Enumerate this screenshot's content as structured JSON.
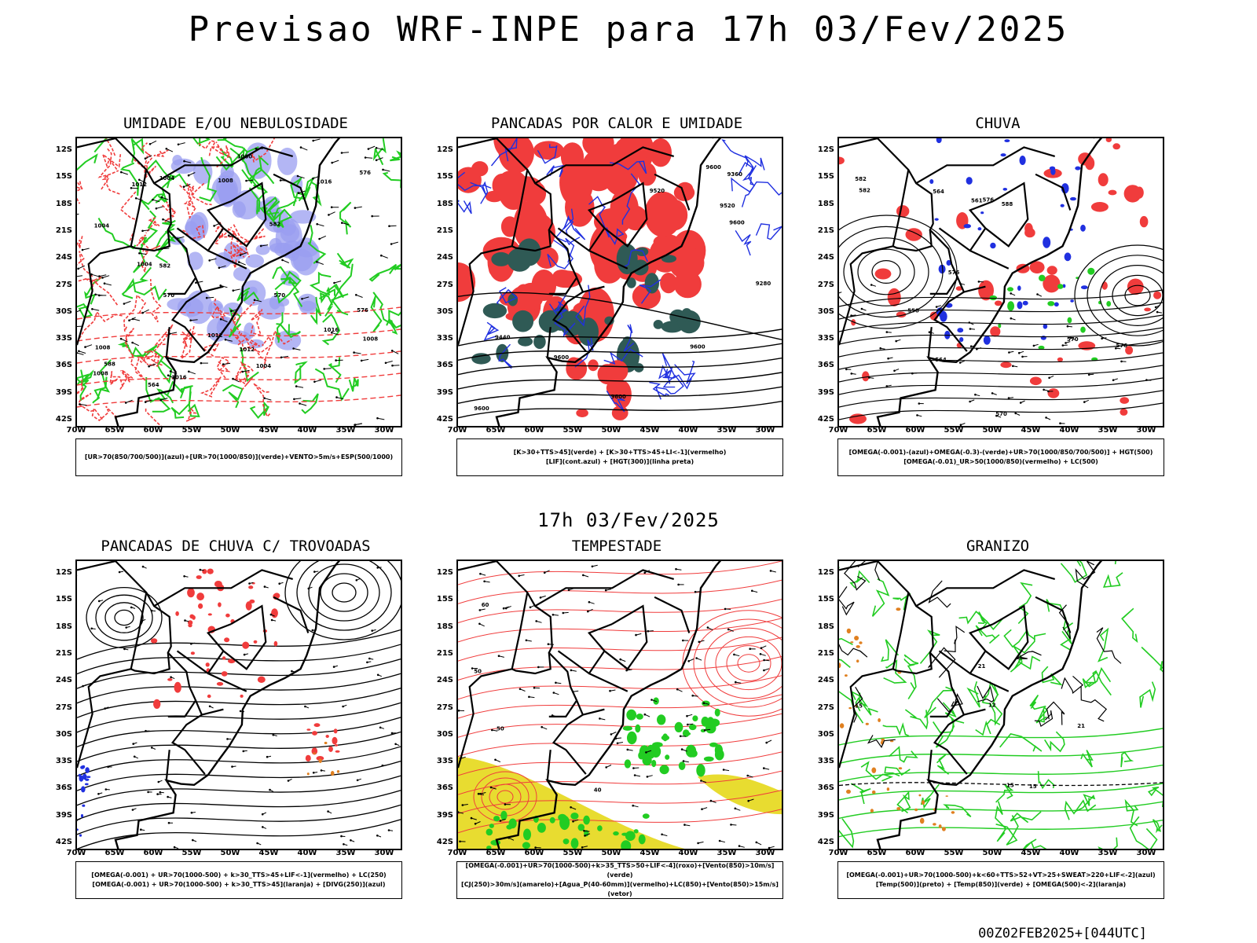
{
  "title": "Previsao WRF-INPE  para 17h 03/Fev/2025",
  "middle_title": "17h 03/Fev/2025",
  "footer": "00Z02FEB2025+[044UTC]",
  "lat_labels": [
    "12S",
    "15S",
    "18S",
    "21S",
    "24S",
    "27S",
    "30S",
    "33S",
    "36S",
    "39S",
    "42S"
  ],
  "lon_labels": [
    "70W",
    "65W",
    "60W",
    "55W",
    "50W",
    "45W",
    "40W",
    "35W",
    "30W"
  ],
  "panels": [
    {
      "title": "UMIDADE E/OU NEBULOSIDADE",
      "legend": [
        "[UR>70(850/700/500)](azul)+[UR>70(1000/850)](verde)+VENTO>5m/s+ESP(500/1000)"
      ],
      "contour_labels": [
        "1008",
        "1004",
        "1008",
        "1004",
        "1012",
        "1012",
        "1016",
        "1016",
        "1012",
        "1000",
        "1004",
        "1008",
        "1004",
        "1016",
        "1008",
        "576",
        "582",
        "570",
        "576",
        "564",
        "582",
        "588",
        "570"
      ]
    },
    {
      "title": "PANCADAS POR CALOR E UMIDADE",
      "legend": [
        "[K>30+TTS>45](verde) + [K>30+TTS>45+LI<-1](vermelho)",
        "[LIF](cont.azul) + [HGT(300)](linha preta)"
      ],
      "contour_labels": [
        "9600",
        "9600",
        "9600",
        "9600",
        "9600",
        "9600",
        "9520",
        "9520",
        "9440",
        "9360",
        "9280"
      ]
    },
    {
      "title": "CHUVA",
      "legend": [
        "[OMEGA(-0.001)-(azul)+OMEGA(-0.3)-(verde)+UR>70(1000/850/700/500)] + HGT(500)",
        "[OMEGA(-0.01)_UR>50(1000/850)(vermelho) + LC(500)"
      ],
      "contour_labels": [
        "582",
        "588",
        "582",
        "576",
        "570",
        "564",
        "576",
        "576",
        "570",
        "564",
        "561",
        "558"
      ]
    },
    {
      "title": "PANCADAS DE CHUVA C/ TROVOADAS",
      "legend": [
        "[OMEGA(-0.001) + UR>70(1000-500) + k>30_TTS>45+LIF<-1](vermelho) + LC(250)",
        "[OMEGA(-0.001) + UR>70(1000-500) + k>30_TTS>45](laranja) + [DIVG(250)](azul)"
      ],
      "contour_labels": []
    },
    {
      "title": "TEMPESTADE",
      "legend": [
        "[OMEGA(-0.001)+UR>70(1000-500)+k>35_TTS>50+LIF<-4](roxo)+[Vento(850)>10m/s](verde)",
        "[CJ(250)>30m/s](amarelo)+[Agua_P(40-60mm)](vermelho)+LC(850)+[Vento(850)>15m/s](vetor)"
      ],
      "contour_labels": [
        "50",
        "60",
        "50",
        "40"
      ]
    },
    {
      "title": "GRANIZO",
      "legend": [
        "[OMEGA(-0.001)+UR>70(1000-500)+k<60+TTS>52+VT>25+SWEAT>220+LIF<-2](azul)",
        "[Temp(500)](preto) + [Temp(850)](verde) + [OMEGA(500)<-2](laranja)"
      ],
      "contour_labels": [
        "15",
        "21",
        "15",
        "12",
        "15",
        "21"
      ]
    }
  ],
  "colors": {
    "blue_humidity": "#9a9ef0",
    "green": "#22cc22",
    "red": "#f03c3c",
    "dark_teal": "#2f5a55",
    "blue_line": "#2030e0",
    "yellow": "#e8dc30",
    "orange": "#e08020"
  }
}
